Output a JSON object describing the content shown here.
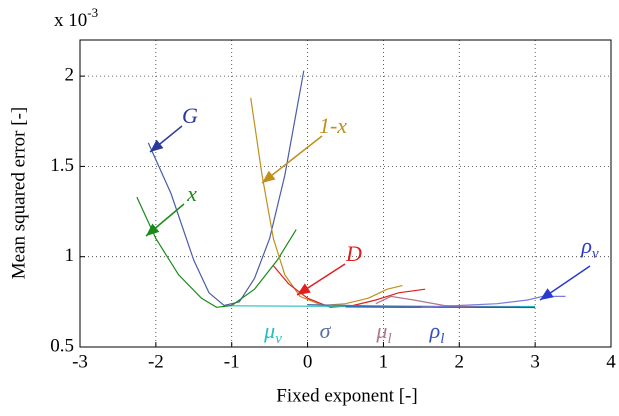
{
  "chart_data": {
    "type": "line",
    "xlabel": "Fixed exponent [-]",
    "ylabel": "Mean squared error [-]",
    "y_multiplier": {
      "text": "x 10",
      "sup": "-3"
    },
    "xlim": [
      -3,
      4
    ],
    "xticks": [
      -3,
      -2,
      -1,
      0,
      1,
      2,
      3,
      4
    ],
    "ylim": [
      0.5,
      2.2
    ],
    "yticks": [
      0.5,
      1,
      1.5,
      2
    ],
    "grid": true,
    "series": [
      {
        "name": "G",
        "color": "#4a5ca8",
        "x": [
          -2.1,
          -1.8,
          -1.5,
          -1.3,
          -1.1,
          -0.9,
          -0.7,
          -0.5,
          -0.3,
          -0.05
        ],
        "values": [
          1.63,
          1.35,
          0.98,
          0.8,
          0.73,
          0.75,
          0.88,
          1.1,
          1.45,
          2.03
        ]
      },
      {
        "name": "x",
        "color": "#1a8a1a",
        "x": [
          -2.25,
          -2.0,
          -1.7,
          -1.4,
          -1.2,
          -1.0,
          -0.7,
          -0.4,
          -0.15
        ],
        "values": [
          1.33,
          1.1,
          0.9,
          0.77,
          0.72,
          0.73,
          0.82,
          0.98,
          1.15
        ]
      },
      {
        "name": "1-x",
        "color": "#c0901e",
        "x": [
          -0.75,
          -0.6,
          -0.45,
          -0.3,
          -0.1,
          0.2,
          0.5,
          0.8,
          1.05,
          1.25
        ],
        "values": [
          1.88,
          1.45,
          1.1,
          0.9,
          0.78,
          0.73,
          0.74,
          0.77,
          0.82,
          0.84
        ]
      },
      {
        "name": "D",
        "color": "#e02020",
        "x": [
          -0.45,
          -0.25,
          0,
          0.3,
          0.6,
          0.9,
          1.2,
          1.55
        ],
        "values": [
          0.95,
          0.85,
          0.77,
          0.72,
          0.73,
          0.76,
          0.8,
          0.82
        ]
      },
      {
        "name": "μv",
        "color": "#20c0c0",
        "x": [
          -1.0,
          0,
          1.0,
          2.0,
          3.0
        ],
        "values": [
          0.728,
          0.726,
          0.725,
          0.724,
          0.724
        ]
      },
      {
        "name": "σ",
        "color": "#5a70a0",
        "x": [
          0,
          0.8,
          1.6,
          2.2,
          2.8
        ],
        "values": [
          0.735,
          0.728,
          0.724,
          0.722,
          0.721
        ]
      },
      {
        "name": "μl",
        "color": "#b07888",
        "x": [
          0.9,
          1.1,
          1.4,
          1.8,
          2.3,
          2.7
        ],
        "values": [
          0.74,
          0.78,
          0.76,
          0.73,
          0.72,
          0.72
        ]
      },
      {
        "name": "ρl",
        "color": "#3050c0",
        "x": [
          0.5,
          1.2,
          2.0,
          3.0
        ],
        "values": [
          0.722,
          0.72,
          0.72,
          0.719
        ]
      },
      {
        "name": "ρv",
        "color": "#7a7ad8",
        "x": [
          1.5,
          2.0,
          2.5,
          2.9,
          3.1,
          3.4
        ],
        "values": [
          0.72,
          0.73,
          0.74,
          0.76,
          0.78,
          0.78
        ]
      }
    ],
    "annotations": [
      {
        "text": "G",
        "color": "#2a3a9a"
      },
      {
        "text": "x",
        "color": "#1a8a1a"
      },
      {
        "text": "1-x",
        "color": "#c0901e"
      },
      {
        "text": "D",
        "color": "#e02020"
      },
      {
        "text": "ρ",
        "sub": "v",
        "color": "#2a3ad0"
      },
      {
        "text": "μ",
        "sub": "v",
        "color": "#20c0c0"
      },
      {
        "text": "σ",
        "color": "#5a70a0"
      },
      {
        "text": "μ",
        "sub": "l",
        "color": "#b07888"
      },
      {
        "text": "ρ",
        "sub": "l",
        "color": "#3050c0"
      }
    ]
  }
}
